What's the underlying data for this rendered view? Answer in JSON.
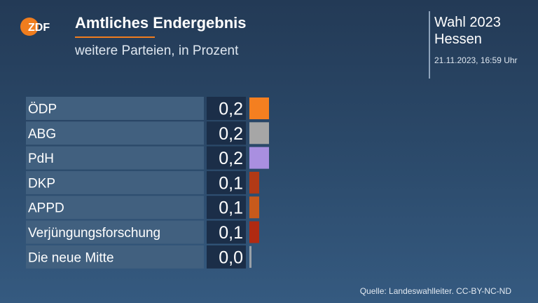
{
  "header": {
    "brand": "ZDF",
    "title": "Amtliches Endergebnis",
    "subtitle": "weitere Parteien, in Prozent",
    "election_line1": "Wahl 2023",
    "election_line2": "Hessen",
    "timestamp": "21.11.2023, 16:59 Uhr"
  },
  "footer": {
    "source": "Quelle: Landeswahlleiter. CC-BY-NC-ND"
  },
  "colors": {
    "brand_orange": "#f07d1e",
    "label_background": "#41607f",
    "value_background": "#1b2e48"
  },
  "chart_data": {
    "type": "bar",
    "orientation": "horizontal",
    "title": "Amtliches Endergebnis",
    "subtitle": "weitere Parteien, in Prozent",
    "categories": [
      "ÖDP",
      "ABG",
      "PdH",
      "DKP",
      "APPD",
      "Verjüngungsforschung",
      "Die neue Mitte"
    ],
    "values": [
      0.2,
      0.2,
      0.2,
      0.1,
      0.1,
      0.1,
      0.0
    ],
    "value_labels": [
      "0,2",
      "0,2",
      "0,2",
      "0,1",
      "0,1",
      "0,1",
      "0,0"
    ],
    "bar_colors": [
      "#f47f20",
      "#a6a6a6",
      "#a98fe0",
      "#b23a16",
      "#c85a1c",
      "#b02a12",
      "#9aa1a8"
    ],
    "xlim": [
      0,
      0.2
    ],
    "grid": false,
    "legend": "none"
  }
}
